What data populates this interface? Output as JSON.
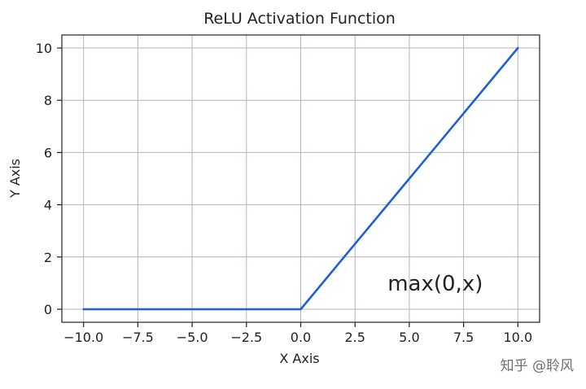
{
  "chart_data": {
    "type": "line",
    "title": "ReLU Activation Function",
    "xlabel": "X Axis",
    "ylabel": "Y Axis",
    "xlim": [
      -11,
      11
    ],
    "ylim": [
      -0.5,
      10.5
    ],
    "xticks": [
      -10.0,
      -7.5,
      -5.0,
      -2.5,
      0.0,
      2.5,
      5.0,
      7.5,
      10.0
    ],
    "xtick_labels": [
      "−10.0",
      "−7.5",
      "−5.0",
      "−2.5",
      "0.0",
      "2.5",
      "5.0",
      "7.5",
      "10.0"
    ],
    "yticks": [
      0,
      2,
      4,
      6,
      8,
      10
    ],
    "ytick_labels": [
      "0",
      "2",
      "4",
      "6",
      "8",
      "10"
    ],
    "grid": true,
    "series": [
      {
        "color": "#1f5fd6",
        "x": [
          -10,
          -7.5,
          -5,
          -2.5,
          0,
          2.5,
          5,
          7.5,
          10
        ],
        "y": [
          0,
          0,
          0,
          0,
          0,
          2.5,
          5,
          7.5,
          10
        ]
      }
    ],
    "annotation": {
      "text": "max(0,x)",
      "x": 4.0,
      "y": 1.0
    }
  },
  "watermark": "知乎 @聆风",
  "colors": {
    "line": "#1f5fd6",
    "grid": "#b0b4c8",
    "axes": "#222222"
  }
}
